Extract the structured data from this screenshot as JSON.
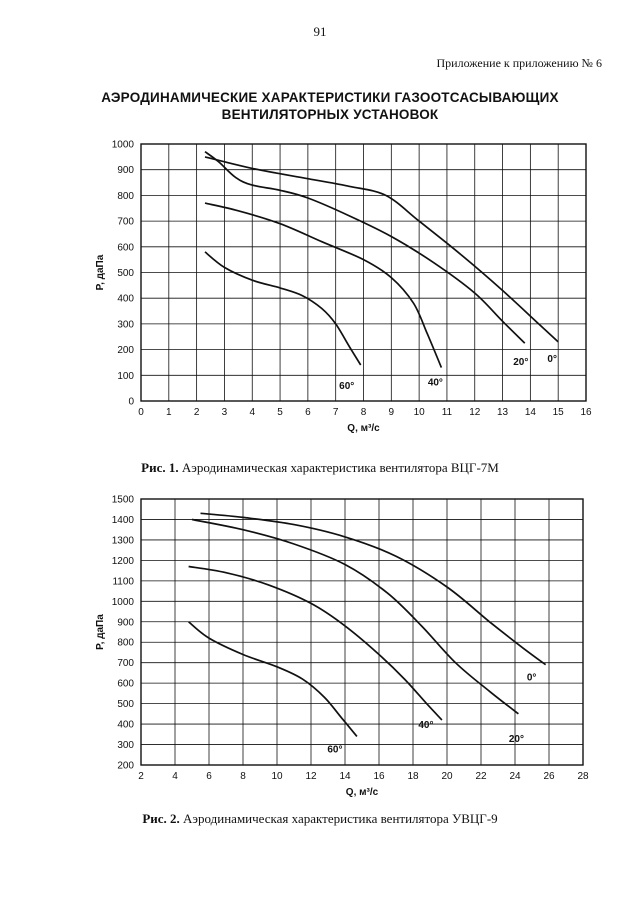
{
  "page": {
    "number": "91",
    "appendix": "Приложение к приложению № 6",
    "title_line1": "АЭРОДИНАМИЧЕСКИЕ ХАРАКТЕРИСТИКИ ГАЗООТСАСЫВАЮЩИХ",
    "title_line2": "ВЕНТИЛЯТОРНЫХ УСТАНОВОК"
  },
  "figures": [
    {
      "caption_bold": "Рис. 1.",
      "caption_text": "Аэродинамическая характеристика вентилятора ВЦГ-7М"
    },
    {
      "caption_bold": "Рис. 2.",
      "caption_text": "Аэродинамическая характеристика вентилятора УВЦГ-9"
    }
  ],
  "chart_data": [
    {
      "type": "line",
      "xlabel": "Q, м³/с",
      "ylabel": "P, даПа",
      "xlim": [
        0,
        16
      ],
      "ylim": [
        0,
        1000
      ],
      "x_ticks": [
        0,
        1,
        2,
        3,
        4,
        5,
        6,
        7,
        8,
        9,
        10,
        11,
        12,
        13,
        14,
        15,
        16
      ],
      "y_ticks": [
        0,
        100,
        200,
        300,
        400,
        500,
        600,
        700,
        800,
        900,
        1000
      ],
      "grid": true,
      "series": [
        {
          "name": "0°",
          "x": [
            2.3,
            4,
            6,
            7.5,
            8.8,
            10,
            11.5,
            13,
            14.3,
            15
          ],
          "y": [
            950,
            905,
            865,
            835,
            800,
            700,
            570,
            430,
            300,
            230
          ]
        },
        {
          "name": "20°",
          "x": [
            2.3,
            2.8,
            3.4,
            4,
            5,
            6,
            7.5,
            9,
            10.5,
            12,
            13,
            13.8
          ],
          "y": [
            970,
            930,
            870,
            840,
            820,
            790,
            720,
            640,
            540,
            420,
            310,
            225
          ]
        },
        {
          "name": "40°",
          "x": [
            2.3,
            3.5,
            5,
            6.5,
            8,
            9,
            9.8,
            10.3,
            10.8
          ],
          "y": [
            770,
            740,
            690,
            620,
            550,
            480,
            380,
            260,
            130
          ]
        },
        {
          "name": "60°",
          "x": [
            2.3,
            3,
            4,
            5,
            5.8,
            6.5,
            7,
            7.5,
            7.9
          ],
          "y": [
            580,
            520,
            470,
            440,
            410,
            360,
            300,
            210,
            140
          ]
        }
      ]
    },
    {
      "type": "line",
      "xlabel": "Q, м³/с",
      "ylabel": "P, даПа",
      "xlim": [
        2,
        28
      ],
      "ylim": [
        200,
        1500
      ],
      "x_ticks": [
        2,
        4,
        6,
        8,
        10,
        12,
        14,
        16,
        18,
        20,
        22,
        24,
        26,
        28
      ],
      "y_ticks": [
        200,
        300,
        400,
        500,
        600,
        700,
        800,
        900,
        1000,
        1100,
        1200,
        1300,
        1400,
        1500
      ],
      "grid": true,
      "series": [
        {
          "name": "0°",
          "x": [
            5.5,
            8,
            11,
            14,
            17,
            20,
            22.5,
            24.5,
            25.8
          ],
          "y": [
            1430,
            1410,
            1375,
            1315,
            1220,
            1070,
            900,
            770,
            690
          ]
        },
        {
          "name": "20°",
          "x": [
            5,
            8,
            11,
            14,
            16.5,
            18.5,
            20.5,
            22.5,
            24.2
          ],
          "y": [
            1400,
            1350,
            1280,
            1180,
            1040,
            880,
            700,
            560,
            450
          ]
        },
        {
          "name": "40°",
          "x": [
            4.8,
            7,
            9.5,
            12,
            14,
            16,
            17.5,
            18.8,
            19.7
          ],
          "y": [
            1170,
            1140,
            1080,
            990,
            880,
            740,
            620,
            500,
            420
          ]
        },
        {
          "name": "60°",
          "x": [
            4.8,
            6,
            8,
            10,
            11.5,
            12.8,
            13.8,
            14.7
          ],
          "y": [
            900,
            820,
            740,
            680,
            620,
            530,
            430,
            340
          ]
        }
      ]
    }
  ]
}
